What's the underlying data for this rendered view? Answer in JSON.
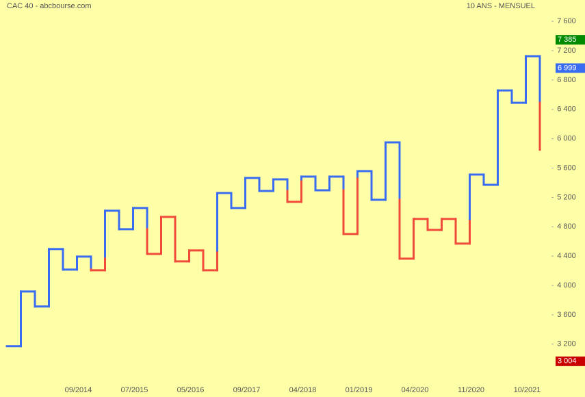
{
  "chart_data": {
    "type": "kagi",
    "title": "CAC 40 - abcbourse.com",
    "subtitle": "10 ANS - MENSUEL",
    "categories": [
      null,
      null,
      null,
      null,
      null,
      "09/2014",
      null,
      null,
      null,
      "07/2015",
      null,
      null,
      null,
      "05/2016",
      null,
      null,
      null,
      "09/2017",
      null,
      null,
      null,
      "04/2018",
      null,
      null,
      null,
      "01/2019",
      null,
      null,
      null,
      "04/2020",
      null,
      null,
      null,
      "11/2020",
      null,
      null,
      null,
      "10/2021",
      null
    ],
    "values": [
      3172,
      3918,
      3713,
      4496,
      4216,
      4393,
      4207,
      5018,
      4766,
      5055,
      4430,
      4934,
      4328,
      4477,
      4207,
      5260,
      5055,
      5465,
      5288,
      5446,
      5139,
      5484,
      5297,
      5484,
      4701,
      5558,
      5167,
      5950,
      4365,
      4906,
      4757,
      4906,
      4570,
      5512,
      5372,
      6658,
      6490,
      7124,
      5850
    ],
    "up_color": "#3a6cf2",
    "down_color": "#f04a3a",
    "ylim": [
      2480,
      7890
    ],
    "yticks": [
      {
        "value": 3200,
        "label": "3 200"
      },
      {
        "value": 3600,
        "label": "3 600"
      },
      {
        "value": 4000,
        "label": "4 000"
      },
      {
        "value": 4400,
        "label": "4 400"
      },
      {
        "value": 4800,
        "label": "4 800"
      },
      {
        "value": 5200,
        "label": "5 200"
      },
      {
        "value": 5600,
        "label": "5 600"
      },
      {
        "value": 6000,
        "label": "6 000"
      },
      {
        "value": 6400,
        "label": "6 400"
      },
      {
        "value": 6800,
        "label": "6 800"
      },
      {
        "value": 7200,
        "label": "7 200"
      },
      {
        "value": 7600,
        "label": "7 600"
      }
    ],
    "markers": [
      {
        "value": 7385,
        "label": "7 385",
        "color": "#008a00"
      },
      {
        "value": 6999,
        "label": "6 999",
        "color": "#3a6cf2"
      },
      {
        "value": 3004,
        "label": "3 004",
        "color": "#c80000"
      }
    ]
  }
}
